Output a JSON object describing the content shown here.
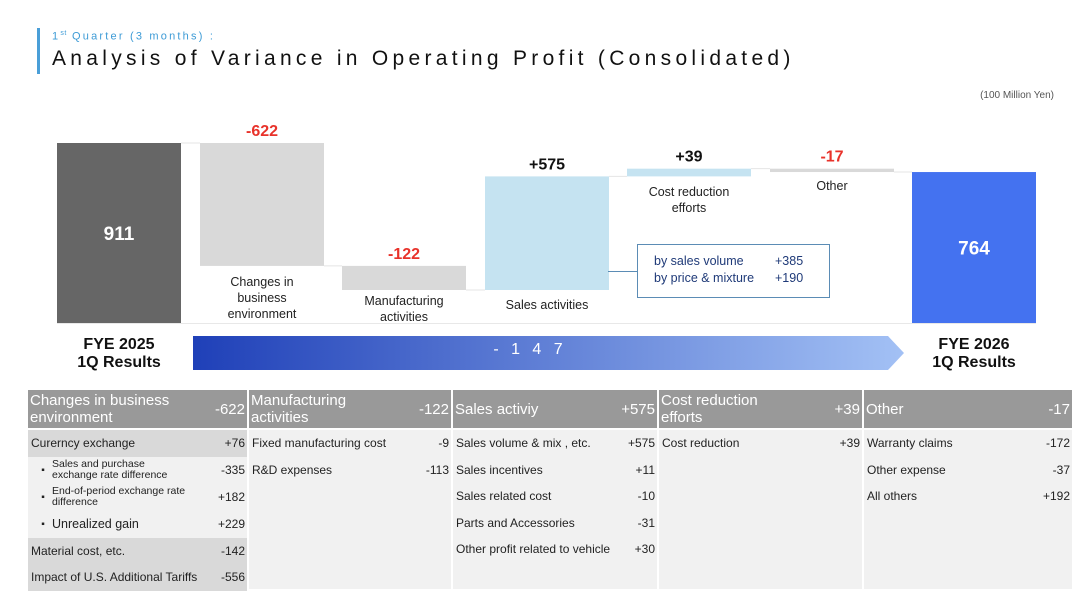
{
  "header": {
    "subtitle_prefix": "1",
    "subtitle_sup": "st",
    "subtitle_rest": " Quarter (3 months) :",
    "title": "Analysis of Variance in Operating Profit (Consolidated)",
    "unit": "(100 Million Yen)"
  },
  "colors": {
    "start_bar": "#666666",
    "negative_bar": "#d9d9d9",
    "positive_bar": "#c5e3f1",
    "end_bar": "#4472f0",
    "negative_text": "#e8322a",
    "positive_text": "#111111",
    "arrow_start": "#1f40b8",
    "arrow_end": "#a3c1f5",
    "table_header": "#999999"
  },
  "chart_data": {
    "type": "waterfall",
    "title": "Analysis of Variance in Operating Profit (Consolidated)",
    "unit": "(100 Million Yen)",
    "steps": [
      {
        "name": "FYE 2025 1Q Results",
        "label": "911",
        "kind": "total",
        "value": 911,
        "category": ""
      },
      {
        "name": "Changes in business environment",
        "label": "-622",
        "kind": "delta",
        "value": -622,
        "category": "Changes in business environment"
      },
      {
        "name": "Manufacturing activities",
        "label": "-122",
        "kind": "delta",
        "value": -122,
        "category": "Manufacturing activities"
      },
      {
        "name": "Sales activities",
        "label": "+575",
        "kind": "delta",
        "value": 575,
        "category": "Sales activities"
      },
      {
        "name": "Cost reduction efforts",
        "label": "+39",
        "kind": "delta",
        "value": 39,
        "category": "Cost reduction efforts"
      },
      {
        "name": "Other",
        "label": "-17",
        "kind": "delta",
        "value": -17,
        "category": "Other"
      },
      {
        "name": "FYE 2026 1Q Results",
        "label": "764",
        "kind": "total",
        "value": 764,
        "category": ""
      }
    ],
    "start_label": [
      "FYE 2025",
      "1Q Results"
    ],
    "end_label": [
      "FYE 2026",
      "1Q Results"
    ],
    "total_change": "- 1 4 7",
    "callout": [
      {
        "label": "by sales volume",
        "value": "+385"
      },
      {
        "label": "by price & mixture",
        "value": "+190"
      }
    ],
    "ylim": [
      0,
      1000
    ]
  },
  "table": {
    "columns": [
      {
        "title": "Changes in business environment",
        "value": "-622",
        "rows": [
          {
            "label": "Curerncy exchange",
            "value": "+76",
            "style": "shaded"
          },
          {
            "label": "Sales and purchase exchange rate difference",
            "value": "-335",
            "style": "sub"
          },
          {
            "label": "End-of-period exchange rate difference",
            "value": "+182",
            "style": "sub"
          },
          {
            "label": "Unrealized gain",
            "value": "+229",
            "style": "sub-single"
          },
          {
            "label": "Material cost, etc.",
            "value": "-142",
            "style": "shaded"
          },
          {
            "label": "Impact of U.S. Additional Tariffs",
            "value": "-556",
            "style": "shaded"
          }
        ]
      },
      {
        "title": "Manufacturing activities",
        "value": "-122",
        "rows": [
          {
            "label": "Fixed manufacturing cost",
            "value": "-9",
            "style": "plain"
          },
          {
            "label": "R&D expenses",
            "value": "-113",
            "style": "plain"
          }
        ]
      },
      {
        "title": "Sales activiy",
        "value": "+575",
        "rows": [
          {
            "label": "Sales volume & mix , etc.",
            "value": "+575",
            "style": "plain"
          },
          {
            "label": "Sales incentives",
            "value": "+11",
            "style": "plain"
          },
          {
            "label": "Sales related cost",
            "value": "-10",
            "style": "plain"
          },
          {
            "label": "Parts and Accessories",
            "value": "-31",
            "style": "plain"
          },
          {
            "label": "Other profit related to vehicle",
            "value": "+30",
            "style": "plain"
          }
        ]
      },
      {
        "title": "Cost reduction efforts",
        "value": "+39",
        "rows": [
          {
            "label": "Cost reduction",
            "value": "+39",
            "style": "plain"
          }
        ]
      },
      {
        "title": "Other",
        "value": "-17",
        "rows": [
          {
            "label": "Warranty claims",
            "value": "-172",
            "style": "plain"
          },
          {
            "label": "Other expense",
            "value": "-37",
            "style": "plain"
          },
          {
            "label": "All others",
            "value": "+192",
            "style": "plain"
          }
        ]
      }
    ]
  }
}
